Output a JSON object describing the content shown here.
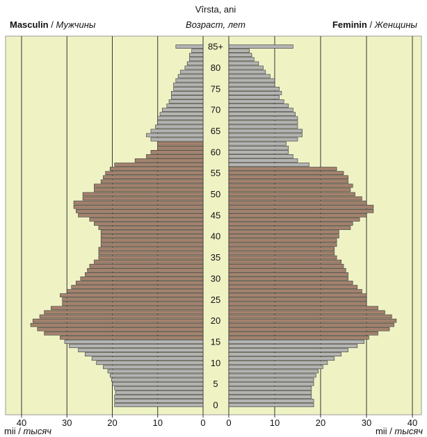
{
  "chart_data": {
    "type": "pyramid",
    "y_title": "Vîrsta, ani",
    "y_title_alt": "Возраст, лет",
    "unit": "mii",
    "unit_alt": "тысяч",
    "xlim": [
      0,
      40
    ],
    "xticks": [
      0,
      10,
      20,
      30,
      40
    ],
    "grid": true,
    "categories": [
      "0",
      null,
      null,
      null,
      null,
      "5",
      null,
      null,
      null,
      null,
      "10",
      null,
      null,
      null,
      null,
      "15",
      null,
      null,
      null,
      null,
      "20",
      null,
      null,
      null,
      null,
      "25",
      null,
      null,
      null,
      null,
      "30",
      null,
      null,
      null,
      null,
      "35",
      null,
      null,
      null,
      null,
      "40",
      null,
      null,
      null,
      null,
      "45",
      null,
      null,
      null,
      null,
      "50",
      null,
      null,
      null,
      null,
      "55",
      null,
      null,
      null,
      null,
      "60",
      null,
      null,
      null,
      null,
      "65",
      null,
      null,
      null,
      null,
      "70",
      null,
      null,
      null,
      null,
      "75",
      null,
      null,
      null,
      null,
      "80",
      null,
      null,
      null,
      null,
      "85+"
    ],
    "series": [
      {
        "name": "Masculin",
        "name_alt": "Мужчины",
        "side": "left",
        "color": "#b4b4b4",
        "highlight_color": "#a4826e",
        "highlight_range": [
          16,
          62
        ],
        "values": [
          19.5,
          19.5,
          19.5,
          19.3,
          19.5,
          20,
          20.2,
          20.5,
          21,
          22,
          23.5,
          24.5,
          26,
          27.5,
          29.5,
          30.5,
          31.5,
          35,
          36.5,
          38,
          37.5,
          36,
          35,
          33.5,
          31,
          31,
          31.5,
          30,
          29,
          28,
          27,
          26,
          25.5,
          25,
          24,
          23,
          23,
          23,
          22.5,
          22.5,
          22.5,
          22.5,
          23,
          24,
          25,
          27.5,
          28,
          28.5,
          28.5,
          26.5,
          26.5,
          24,
          24,
          22.5,
          22,
          21.5,
          20.5,
          19.5,
          15,
          12.5,
          11.5,
          10,
          10,
          11.5,
          12.5,
          11.5,
          10.5,
          10,
          10,
          9.5,
          9,
          8,
          7.5,
          7,
          7,
          6.5,
          6.5,
          6,
          5.5,
          5,
          4,
          3.5,
          3,
          3,
          2.5,
          6
        ]
      },
      {
        "name": "Feminin",
        "name_alt": "Женщины",
        "side": "right",
        "color": "#b4b4b4",
        "highlight_color": "#a4826e",
        "highlight_range": [
          16,
          56
        ],
        "values": [
          18.5,
          18.5,
          18,
          18,
          18,
          18.5,
          18.5,
          19,
          19.5,
          20.5,
          21.5,
          23,
          24.5,
          26,
          28,
          29.5,
          30.5,
          32.5,
          35,
          36,
          36.5,
          35.5,
          34,
          32.5,
          30,
          30,
          30,
          29,
          28,
          27,
          26,
          26,
          25.5,
          25,
          24.5,
          23.5,
          23,
          23,
          23.5,
          23.5,
          24,
          24,
          26.5,
          27,
          28.5,
          30,
          31.5,
          31.5,
          30,
          29,
          27.5,
          26.5,
          27,
          26,
          26,
          25,
          23.5,
          17.5,
          15,
          14,
          13,
          13,
          12.5,
          15,
          16,
          16,
          15,
          15,
          15,
          14.5,
          14,
          13,
          12,
          11,
          11.5,
          11,
          10,
          10,
          9,
          8,
          7.5,
          6.5,
          5.5,
          5,
          4.5,
          14
        ]
      }
    ]
  }
}
